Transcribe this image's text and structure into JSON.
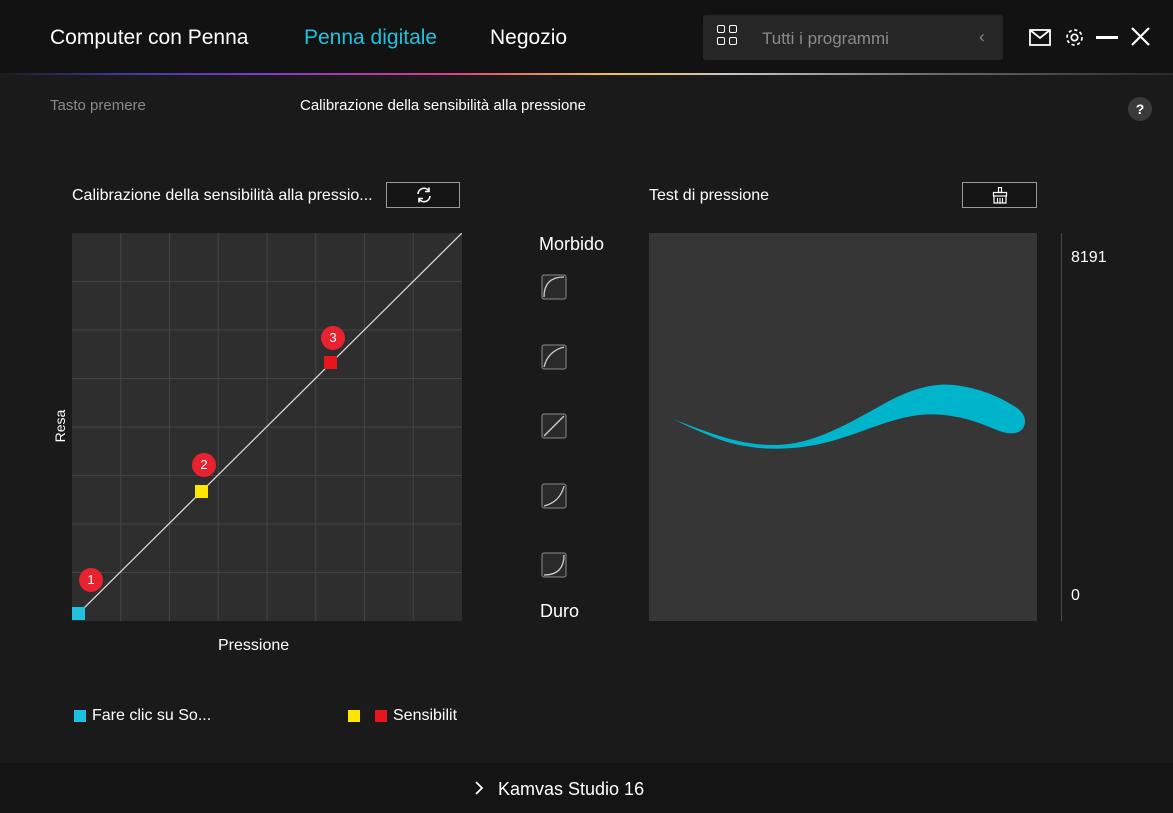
{
  "header": {
    "tabs": [
      {
        "label": "Computer con Penna",
        "active": false
      },
      {
        "label": "Penna digitale",
        "active": true
      },
      {
        "label": "Negozio",
        "active": false
      }
    ],
    "search_placeholder": "Tutti i programmi",
    "accent": "#1ec2dc",
    "icons": [
      "grid-icon",
      "chevron-left-icon",
      "mail-icon",
      "gear-icon",
      "minimize-icon",
      "close-icon"
    ]
  },
  "subtabs": {
    "items": [
      "Tasto premere",
      "Calibrazione della sensibilità alla pressione"
    ],
    "active_index": 1,
    "help_label": "?"
  },
  "calibration": {
    "title": "Calibrazione della sensibilità alla pressio...",
    "reset_icon": "refresh-icon",
    "y_label": "Resa",
    "x_label": "Pressione",
    "points": [
      {
        "label": "1",
        "color": "#1ec2dc"
      },
      {
        "label": "2",
        "color": "#ffe600"
      },
      {
        "label": "3",
        "color": "#e8141e"
      }
    ],
    "legend": [
      {
        "text": "Fare clic su So...",
        "colors": [
          "#1ec2dc"
        ]
      },
      {
        "text": "Sensibilit",
        "colors": [
          "#ffe600",
          "#e8141e"
        ]
      }
    ]
  },
  "presets": {
    "top_label": "Morbido",
    "bottom_label": "Duro",
    "icons": [
      "soft-curve-icon",
      "medium-soft-curve-icon",
      "linear-curve-icon",
      "medium-hard-curve-icon",
      "hard-curve-icon"
    ]
  },
  "test": {
    "title": "Test di pressione",
    "clear_icon": "broom-icon",
    "scale_max": "8191",
    "scale_min": "0",
    "stroke_color": "#00b4cc"
  },
  "footer": {
    "device": "Kamvas Studio 16"
  }
}
